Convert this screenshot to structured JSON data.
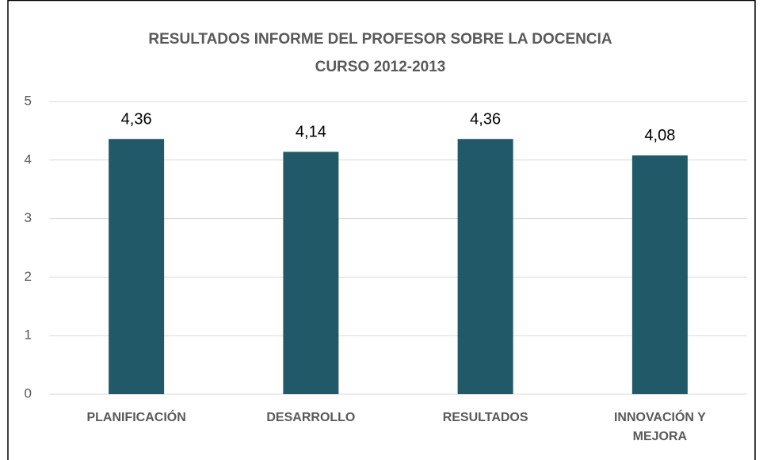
{
  "chart_data": {
    "type": "bar",
    "title": "RESULTADOS INFORME DEL PROFESOR SOBRE LA DOCENCIA",
    "subtitle": "CURSO 2012-2013",
    "categories": [
      "PLANIFICACIÓN",
      "DESARROLLO",
      "RESULTADOS",
      "INNOVACIÓN Y MEJORA"
    ],
    "values": [
      4.36,
      4.14,
      4.36,
      4.08
    ],
    "value_labels": [
      "4,36",
      "4,14",
      "4,36",
      "4,08"
    ],
    "color": "#225968",
    "ylim": [
      0,
      5
    ],
    "yticks": [
      0,
      1,
      2,
      3,
      4,
      5
    ],
    "grid": true
  }
}
